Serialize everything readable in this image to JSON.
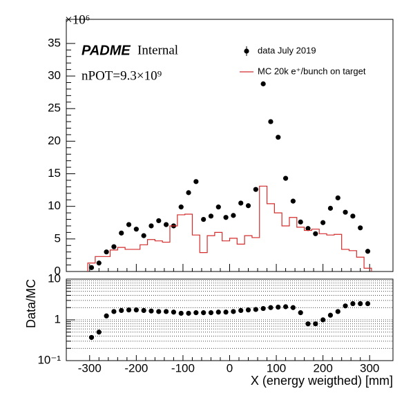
{
  "chart_data": [
    {
      "type": "hist",
      "annotations": [
        "PADME",
        "Internal",
        "nPOT=9.3×10⁹"
      ],
      "multiplier": "×10⁶",
      "xlim": [
        -350,
        350
      ],
      "xticks": [
        -300,
        -200,
        -100,
        0,
        100,
        200,
        300
      ],
      "ylim": [
        0,
        38.7
      ],
      "yticks": [
        0,
        5,
        10,
        15,
        20,
        25,
        30,
        35
      ],
      "legend": "top-right",
      "series": [
        {
          "name": "data July 2019",
          "color": "#000000",
          "style": "points",
          "x": [
            -296,
            -280,
            -264,
            -248,
            -232,
            -216,
            -200,
            -184,
            -168,
            -152,
            -136,
            -120,
            -104,
            -88,
            -72,
            -56,
            -40,
            -24,
            -8,
            8,
            24,
            40,
            56,
            72,
            88,
            104,
            120,
            136,
            152,
            168,
            184,
            200,
            216,
            232,
            248,
            264,
            280,
            296
          ],
          "values": [
            0.6,
            1.3,
            3.0,
            3.8,
            5.9,
            7.2,
            6.5,
            5.5,
            7.0,
            7.8,
            7.2,
            7.0,
            9.9,
            12.1,
            13.8,
            8.0,
            8.5,
            9.9,
            8.3,
            8.6,
            10.5,
            10.1,
            12.6,
            28.8,
            23.0,
            20.6,
            14.3,
            10.8,
            7.6,
            6.6,
            5.8,
            7.5,
            9.7,
            11.3,
            9.1,
            8.5,
            6.7,
            3.1
          ]
        },
        {
          "name": "MC 20k e⁺/bunch on target",
          "color": "#d42a2a",
          "style": "step",
          "bins": [
            -304,
            -288,
            -272,
            -256,
            -240,
            -224,
            -208,
            -192,
            -176,
            -160,
            -144,
            -128,
            -112,
            -96,
            -80,
            -64,
            -48,
            -32,
            -16,
            0,
            16,
            32,
            48,
            64,
            80,
            96,
            112,
            128,
            144,
            160,
            176,
            192,
            208,
            224,
            240,
            256,
            272,
            288,
            304
          ],
          "values": [
            1.3,
            2.3,
            2.3,
            3.3,
            3.7,
            3.4,
            3.4,
            4.1,
            4.9,
            4.7,
            4.5,
            7.0,
            8.7,
            8.8,
            5.6,
            2.9,
            5.5,
            6.0,
            4.7,
            5.1,
            4.2,
            5.5,
            5.2,
            13.1,
            10.4,
            9.0,
            7.0,
            8.3,
            6.8,
            6.3,
            6.5,
            5.8,
            5.6,
            5.7,
            3.4,
            3.2,
            2.2,
            0.5
          ]
        }
      ]
    },
    {
      "type": "scatter",
      "xlabel": "X (energy weigthed) [mm]",
      "ylabel": "Data/MC",
      "xlim": [
        -350,
        350
      ],
      "xticks": [
        -300,
        -200,
        -100,
        0,
        100,
        200,
        300
      ],
      "ylim": [
        0.1,
        10
      ],
      "yticks": [
        {
          "value": 0.1,
          "label": "10⁻¹"
        },
        1,
        10
      ],
      "log_y": true,
      "grid": true,
      "series": [
        {
          "color": "#000000",
          "x": [
            -296,
            -280,
            -264,
            -248,
            -232,
            -216,
            -200,
            -184,
            -168,
            -152,
            -136,
            -120,
            -104,
            -88,
            -72,
            -56,
            -40,
            -24,
            -8,
            8,
            24,
            40,
            56,
            72,
            88,
            104,
            120,
            136,
            152,
            168,
            184,
            200,
            216,
            232,
            248,
            264,
            280,
            296
          ],
          "values": [
            0.37,
            0.5,
            1.25,
            1.6,
            1.7,
            1.75,
            1.75,
            1.7,
            1.65,
            1.6,
            1.6,
            1.55,
            1.45,
            1.45,
            1.5,
            1.5,
            1.5,
            1.55,
            1.55,
            1.6,
            1.7,
            1.75,
            1.8,
            1.9,
            2.0,
            2.05,
            2.1,
            2.0,
            1.5,
            0.8,
            0.8,
            1.0,
            1.3,
            1.6,
            2.2,
            2.5,
            2.5,
            2.5
          ]
        }
      ]
    }
  ]
}
